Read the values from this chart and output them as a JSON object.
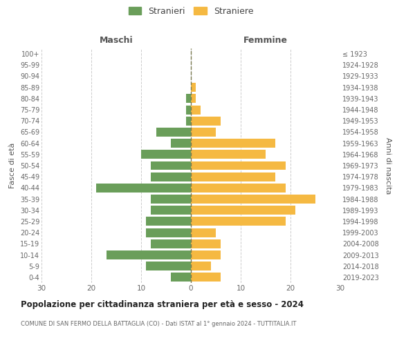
{
  "age_groups": [
    "100+",
    "95-99",
    "90-94",
    "85-89",
    "80-84",
    "75-79",
    "70-74",
    "65-69",
    "60-64",
    "55-59",
    "50-54",
    "45-49",
    "40-44",
    "35-39",
    "30-34",
    "25-29",
    "20-24",
    "15-19",
    "10-14",
    "5-9",
    "0-4"
  ],
  "birth_years": [
    "≤ 1923",
    "1924-1928",
    "1929-1933",
    "1934-1938",
    "1939-1943",
    "1944-1948",
    "1949-1953",
    "1954-1958",
    "1959-1963",
    "1964-1968",
    "1969-1973",
    "1974-1978",
    "1979-1983",
    "1984-1988",
    "1989-1993",
    "1994-1998",
    "1999-2003",
    "2004-2008",
    "2009-2013",
    "2014-2018",
    "2019-2023"
  ],
  "maschi": [
    0,
    0,
    0,
    0,
    1,
    1,
    1,
    7,
    4,
    10,
    8,
    8,
    19,
    8,
    8,
    9,
    9,
    8,
    17,
    9,
    4
  ],
  "femmine": [
    0,
    0,
    0,
    1,
    1,
    2,
    6,
    5,
    17,
    15,
    19,
    17,
    19,
    25,
    21,
    19,
    5,
    6,
    6,
    4,
    6
  ],
  "maschi_color": "#6a9e5a",
  "femmine_color": "#f5b942",
  "grid_color": "#cccccc",
  "center_line_color": "#7a7a50",
  "title": "Popolazione per cittadinanza straniera per età e sesso - 2024",
  "subtitle": "COMUNE DI SAN FERMO DELLA BATTAGLIA (CO) - Dati ISTAT al 1° gennaio 2024 - TUTTITALIA.IT",
  "xlabel_left": "Maschi",
  "xlabel_right": "Femmine",
  "ylabel_left": "Fasce di età",
  "ylabel_right": "Anni di nascita",
  "legend_maschi": "Stranieri",
  "legend_femmine": "Straniere",
  "xlim": 30,
  "background_color": "#ffffff",
  "bar_height": 0.8
}
